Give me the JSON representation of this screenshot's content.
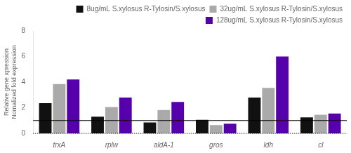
{
  "chart_data": {
    "type": "bar",
    "categories": [
      "trxA",
      "rplw",
      "aldA-1",
      "gros",
      "ldh",
      "cl"
    ],
    "series": [
      {
        "name": "8ug/mL S.xylosus R-Tylosin/S.xylosus",
        "color": "#111111",
        "values": [
          2.35,
          1.3,
          0.85,
          1.05,
          2.8,
          1.25
        ]
      },
      {
        "name": "32ug/mL S.xylosus R-Tylosin/S.xylosus",
        "color": "#aaaaaa",
        "values": [
          3.85,
          2.05,
          1.82,
          0.65,
          3.55,
          1.45
        ]
      },
      {
        "name": "128ug/mL S.xylosus R-Tylosin/S.xylosus",
        "color": "#5500aa",
        "values": [
          4.2,
          2.8,
          2.45,
          0.75,
          6.0,
          1.55
        ]
      }
    ],
    "ylabel": "Relative gene xpression\nNomalized fold expression",
    "ylim": [
      0,
      8
    ],
    "yticks": [
      0,
      2,
      4,
      6,
      8
    ],
    "reference_lines": [
      {
        "value": 1.0,
        "line_style": "solid"
      },
      {
        "value": 0.0,
        "line_style": "dotted"
      }
    ],
    "grid": false,
    "legend": "upper right"
  }
}
